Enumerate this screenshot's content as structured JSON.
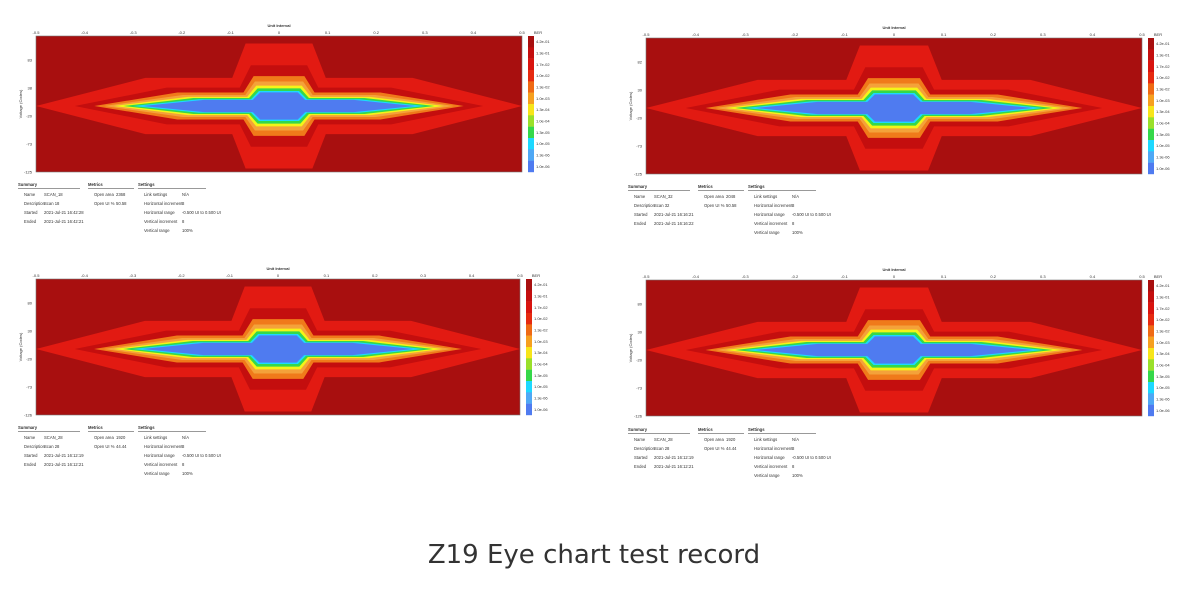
{
  "caption": "Z19 Eye chart test record",
  "colors": {
    "outer": "#a80f0f",
    "red": "#e21a12",
    "deep_red": "#c40e0e",
    "orange": "#f07a1a",
    "amber": "#f4a23a",
    "yellow": "#f4f418",
    "green": "#35d84a",
    "cyan": "#1dd8ff",
    "blue": "#4f7bf0"
  },
  "legend": {
    "title": "BER",
    "levels": [
      "4.2e-01",
      "1.3e-01",
      "1.7e-02",
      "1.0e-02",
      "1.3e-02",
      "1.0e-03",
      "1.3e-04",
      "1.0e-04",
      "1.3e-05",
      "1.0e-05",
      "1.3e-06",
      "1.0e-06"
    ],
    "colors": [
      "#a80f0f",
      "#c40e0e",
      "#d9140f",
      "#e62a10",
      "#ef6a14",
      "#f6a01f",
      "#f7e51a",
      "#9ae02a",
      "#35d84a",
      "#1dd8ff",
      "#4fa8f5",
      "#4f7bf0"
    ]
  },
  "chart_data": [
    {
      "type": "heatmap",
      "title": "Unit Interval",
      "xlabel": "",
      "ylabel": "Voltage (Codes)",
      "x_ticks": [
        "-0.5",
        "-0.4",
        "-0.3",
        "-0.2",
        "-0.1",
        "0",
        "0.1",
        "0.2",
        "0.3",
        "0.4",
        "0.5"
      ],
      "y_ticks": [
        "83",
        "38",
        "-20",
        "-73",
        "-125"
      ],
      "legend_title": "BER",
      "summary": {
        "title": "Summary",
        "rows": [
          [
            "Name",
            "SCAN_18"
          ],
          [
            "Description",
            "Scan 18"
          ],
          [
            "Started",
            "2021-Jul-21 16:42:28"
          ],
          [
            "Ended",
            "2021-Jul-21 16:42:21"
          ]
        ]
      },
      "metrics": {
        "title": "Metrics",
        "rows": [
          [
            "Open area",
            "2368"
          ],
          [
            "Open UI %",
            "50.58"
          ]
        ]
      },
      "settings": {
        "title": "Settings",
        "rows": [
          [
            "Link settings",
            "N/A"
          ],
          [
            "Horizontal increment",
            "8"
          ],
          [
            "Horizontal range",
            "-0.500 UI to 0.500 UI"
          ],
          [
            "Vertical increment",
            "8"
          ],
          [
            "Vertical range",
            "100%"
          ]
        ]
      }
    },
    {
      "type": "heatmap",
      "title": "Unit Interval",
      "xlabel": "",
      "ylabel": "Voltage (Codes)",
      "x_ticks": [
        "-0.5",
        "-0.4",
        "-0.3",
        "-0.2",
        "-0.1",
        "0",
        "0.1",
        "0.2",
        "0.3",
        "0.4",
        "0.5"
      ],
      "y_ticks": [
        "82",
        "30",
        "-20",
        "-73",
        "-125"
      ],
      "legend_title": "BER",
      "summary": {
        "title": "Summary",
        "rows": [
          [
            "Name",
            "SCAN_32"
          ],
          [
            "Description",
            "Scan 32"
          ],
          [
            "Started",
            "2021-Jul-21 16:16:21"
          ],
          [
            "Ended",
            "2021-Jul-21 16:16:22"
          ]
        ]
      },
      "metrics": {
        "title": "Metrics",
        "rows": [
          [
            "Open area",
            "2048"
          ],
          [
            "Open UI %",
            "50.58"
          ]
        ]
      },
      "settings": {
        "title": "Settings",
        "rows": [
          [
            "Link settings",
            "N/A"
          ],
          [
            "Horizontal increment",
            "8"
          ],
          [
            "Horizontal range",
            "-0.500 UI to 0.500 UI"
          ],
          [
            "Vertical increment",
            "8"
          ],
          [
            "Vertical range",
            "100%"
          ]
        ]
      }
    },
    {
      "type": "heatmap",
      "title": "Unit Interval",
      "xlabel": "",
      "ylabel": "Voltage (Codes)",
      "x_ticks": [
        "-0.5",
        "-0.4",
        "-0.3",
        "-0.2",
        "-0.1",
        "0",
        "0.1",
        "0.2",
        "0.3",
        "0.4",
        "0.5"
      ],
      "y_ticks": [
        "80",
        "30",
        "-20",
        "-73",
        "-126"
      ],
      "legend_title": "BER",
      "summary": {
        "title": "Summary",
        "rows": [
          [
            "Name",
            "SCAN_28"
          ],
          [
            "Description",
            "Scan 28"
          ],
          [
            "Started",
            "2021-Jul-21 16:12:19"
          ],
          [
            "Ended",
            "2021-Jul-21 16:12:21"
          ]
        ]
      },
      "metrics": {
        "title": "Metrics",
        "rows": [
          [
            "Open area",
            "1920"
          ],
          [
            "Open UI %",
            "44.44"
          ]
        ]
      },
      "settings": {
        "title": "Settings",
        "rows": [
          [
            "Link settings",
            "N/A"
          ],
          [
            "Horizontal increment",
            "8"
          ],
          [
            "Horizontal range",
            "-0.500 UI to 0.500 UI"
          ],
          [
            "Vertical increment",
            "8"
          ],
          [
            "Vertical range",
            "100%"
          ]
        ]
      }
    },
    {
      "type": "heatmap",
      "title": "Unit Interval",
      "xlabel": "",
      "ylabel": "Voltage (Codes)",
      "x_ticks": [
        "-0.5",
        "-0.4",
        "-0.3",
        "-0.2",
        "-0.1",
        "0",
        "0.1",
        "0.2",
        "0.3",
        "0.4",
        "0.5"
      ],
      "y_ticks": [
        "80",
        "30",
        "-20",
        "-73",
        "-126"
      ],
      "legend_title": "BER",
      "summary": {
        "title": "Summary",
        "rows": [
          [
            "Name",
            "SCAN_28"
          ],
          [
            "Description",
            "Scan 28"
          ],
          [
            "Started",
            "2021-Jul-21 16:12:19"
          ],
          [
            "Ended",
            "2021-Jul-21 16:12:21"
          ]
        ]
      },
      "metrics": {
        "title": "Metrics",
        "rows": [
          [
            "Open area",
            "1920"
          ],
          [
            "Open UI %",
            "44.44"
          ]
        ]
      },
      "settings": {
        "title": "Settings",
        "rows": [
          [
            "Link settings",
            "N/A"
          ],
          [
            "Horizontal increment",
            "8"
          ],
          [
            "Horizontal range",
            "-0.500 UI to 0.500 UI"
          ],
          [
            "Vertical increment",
            "8"
          ],
          [
            "Vertical range",
            "100%"
          ]
        ]
      }
    }
  ]
}
